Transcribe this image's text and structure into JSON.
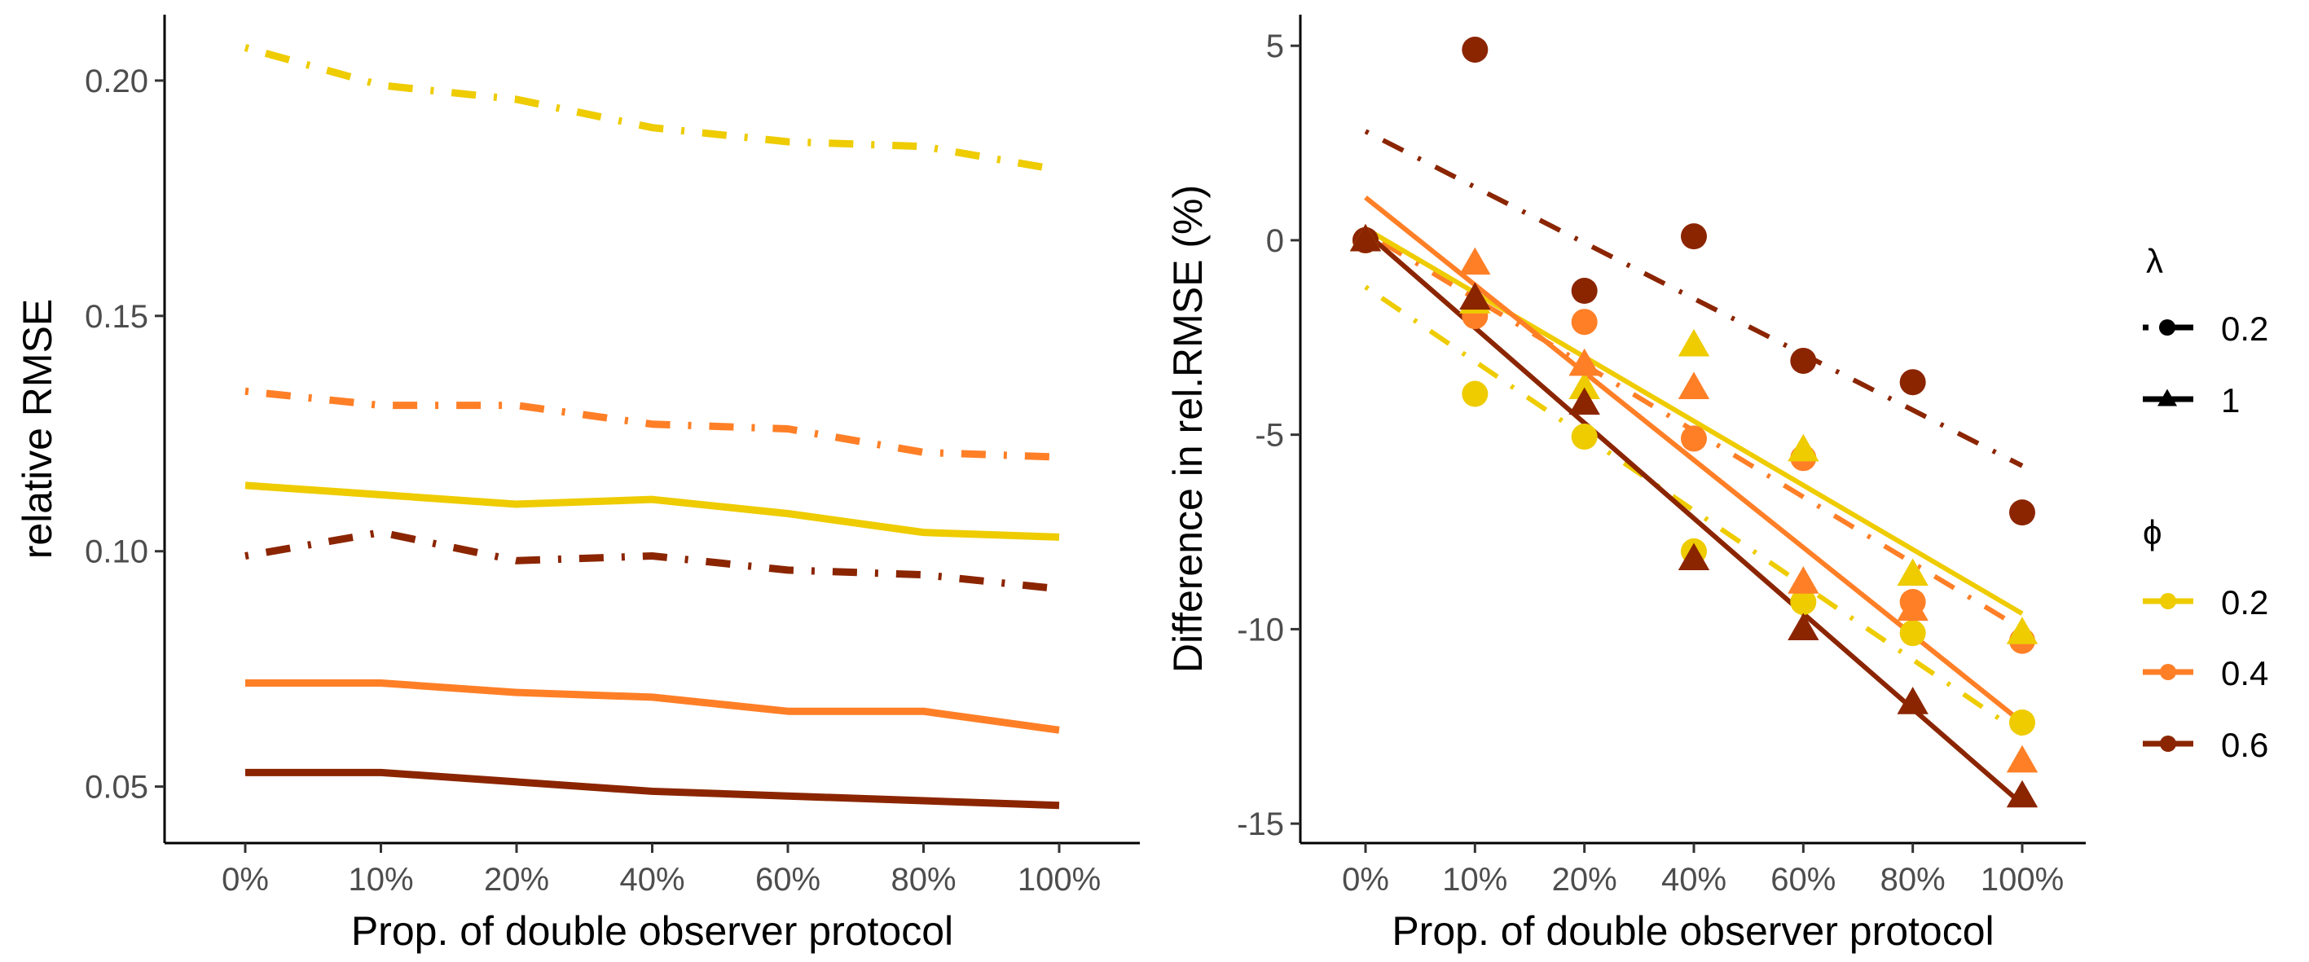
{
  "colors": {
    "phi_0.2": "#EECC00",
    "phi_0.4": "#FF7F27",
    "phi_0.6": "#8B2500"
  },
  "chart_data": [
    {
      "type": "line",
      "xlabel": "Prop. of double observer protocol",
      "ylabel": "relative RMSE",
      "categories": [
        "0%",
        "10%",
        "20%",
        "40%",
        "60%",
        "80%",
        "100%"
      ],
      "yticks": [
        "0.05",
        "0.10",
        "0.15",
        "0.20"
      ],
      "ylim": [
        0.038,
        0.214
      ],
      "grid": false,
      "series": [
        {
          "lambda": "0.2",
          "phi": "0.2",
          "linetype": "dashdot",
          "values": [
            0.207,
            0.199,
            0.196,
            0.19,
            0.187,
            0.186,
            0.181
          ]
        },
        {
          "lambda": "0.2",
          "phi": "0.4",
          "linetype": "dashdot",
          "values": [
            0.134,
            0.131,
            0.131,
            0.127,
            0.126,
            0.121,
            0.12
          ]
        },
        {
          "lambda": "1",
          "phi": "0.2",
          "linetype": "solid",
          "values": [
            0.114,
            0.112,
            0.11,
            0.111,
            0.108,
            0.104,
            0.103
          ]
        },
        {
          "lambda": "0.2",
          "phi": "0.6",
          "linetype": "dashdot",
          "values": [
            0.099,
            0.104,
            0.098,
            0.099,
            0.096,
            0.095,
            0.092
          ]
        },
        {
          "lambda": "1",
          "phi": "0.4",
          "linetype": "solid",
          "values": [
            0.072,
            0.072,
            0.07,
            0.069,
            0.066,
            0.066,
            0.062
          ]
        },
        {
          "lambda": "1",
          "phi": "0.6",
          "linetype": "solid",
          "values": [
            0.053,
            0.053,
            0.051,
            0.049,
            0.048,
            0.047,
            0.046
          ]
        }
      ]
    },
    {
      "type": "scatter",
      "xlabel": "Prop. of double observer protocol",
      "ylabel": "Difference in rel.RMSE (%)",
      "categories": [
        "0%",
        "10%",
        "20%",
        "40%",
        "60%",
        "80%",
        "100%"
      ],
      "yticks": [
        "-15",
        "-10",
        "-5",
        "0",
        "5"
      ],
      "ylim": [
        -15.5,
        5.8
      ],
      "grid": false,
      "legend_placement": "right",
      "series": [
        {
          "lambda": "0.2",
          "phi": "0.2",
          "marker": "circle",
          "linetype": "dashdot",
          "values": [
            0,
            -3.95,
            -5.05,
            -8.0,
            -9.3,
            -10.1,
            -12.4
          ],
          "fit": [
            -1.2,
            -12.7
          ]
        },
        {
          "lambda": "0.2",
          "phi": "0.4",
          "marker": "circle",
          "linetype": "dashdot",
          "values": [
            0,
            -1.95,
            -2.1,
            -5.1,
            -5.6,
            -9.3,
            -10.3
          ],
          "fit": [
            0.2,
            -10.0
          ]
        },
        {
          "lambda": "0.2",
          "phi": "0.6",
          "marker": "circle",
          "linetype": "dashdot",
          "values": [
            0,
            4.9,
            -1.3,
            0.1,
            -3.1,
            -3.65,
            -7.0
          ],
          "fit": [
            2.8,
            -5.8
          ]
        },
        {
          "lambda": "1",
          "phi": "0.2",
          "marker": "triangle",
          "linetype": "solid",
          "values": [
            0,
            -1.6,
            -3.8,
            -2.7,
            -5.4,
            -8.6,
            -10.1
          ],
          "fit": [
            0.3,
            -9.6
          ]
        },
        {
          "lambda": "1",
          "phi": "0.4",
          "marker": "triangle",
          "linetype": "solid",
          "values": [
            0,
            -0.6,
            -3.2,
            -3.8,
            -8.8,
            -9.5,
            -13.4
          ],
          "fit": [
            1.1,
            -12.4
          ]
        },
        {
          "lambda": "1",
          "phi": "0.6",
          "marker": "triangle",
          "linetype": "solid",
          "values": [
            0,
            -1.5,
            -4.2,
            -8.2,
            -10.0,
            -11.9,
            -14.3
          ],
          "fit": [
            0.2,
            -14.5
          ]
        }
      ],
      "legend": {
        "lambda_title": "λ",
        "lambda_items": [
          {
            "label": "0.2",
            "marker": "circle",
            "linetype": "dashdot"
          },
          {
            "label": "1",
            "marker": "triangle",
            "linetype": "solid"
          }
        ],
        "phi_title": "ϕ",
        "phi_items": [
          {
            "label": "0.2"
          },
          {
            "label": "0.4"
          },
          {
            "label": "0.6"
          }
        ]
      }
    }
  ]
}
